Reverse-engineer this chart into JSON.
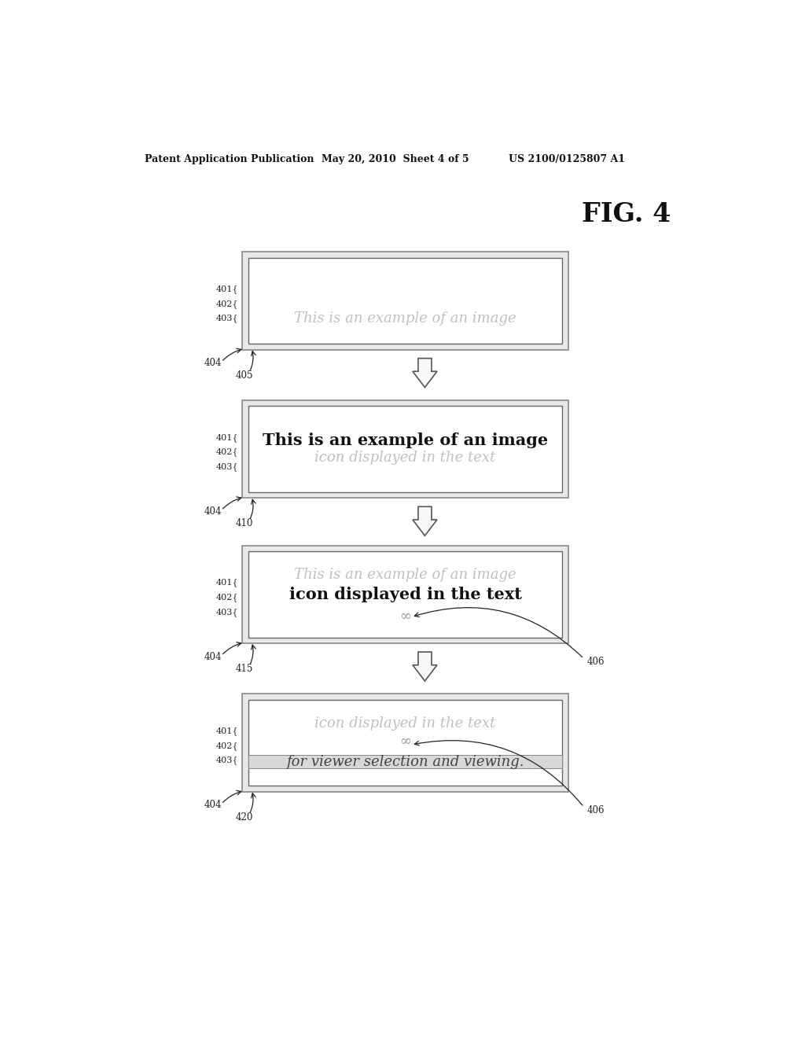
{
  "header_left": "Patent Application Publication",
  "header_mid": "May 20, 2010  Sheet 4 of 5",
  "header_right": "US 2100/0125807 A1",
  "fig_title": "FIG. 4",
  "bg_color": "#ffffff",
  "panels": [
    {
      "lines": [
        {
          "text": "This is an example of an image",
          "bold": false,
          "italic": true,
          "color": "#c0c0c0",
          "fontsize": 13
        }
      ]
    },
    {
      "lines": [
        {
          "text": "This is an example of an image",
          "bold": true,
          "italic": false,
          "color": "#111111",
          "fontsize": 15
        },
        {
          "text": "icon displayed in the text",
          "bold": false,
          "italic": true,
          "color": "#c0c0c0",
          "fontsize": 13
        }
      ]
    },
    {
      "lines": [
        {
          "text": "This is an example of an image",
          "bold": false,
          "italic": true,
          "color": "#c0c0c0",
          "fontsize": 13
        },
        {
          "text": "icon displayed in the text",
          "bold": true,
          "italic": false,
          "color": "#111111",
          "fontsize": 15
        },
        {
          "text": "∞",
          "bold": false,
          "italic": false,
          "color": "#999999",
          "fontsize": 13
        }
      ],
      "has_406": true
    },
    {
      "lines": [
        {
          "text": "icon displayed in the text",
          "bold": false,
          "italic": true,
          "color": "#c0c0c0",
          "fontsize": 13
        },
        {
          "text": "∞",
          "bold": false,
          "italic": false,
          "color": "#999999",
          "fontsize": 13
        },
        {
          "text": "for viewer selection and viewing.",
          "bold": false,
          "italic": true,
          "color": "#444444",
          "fontsize": 13
        }
      ],
      "has_406": true,
      "highlight_last": true
    }
  ],
  "step_labels": [
    "405",
    "410",
    "415",
    "420"
  ]
}
